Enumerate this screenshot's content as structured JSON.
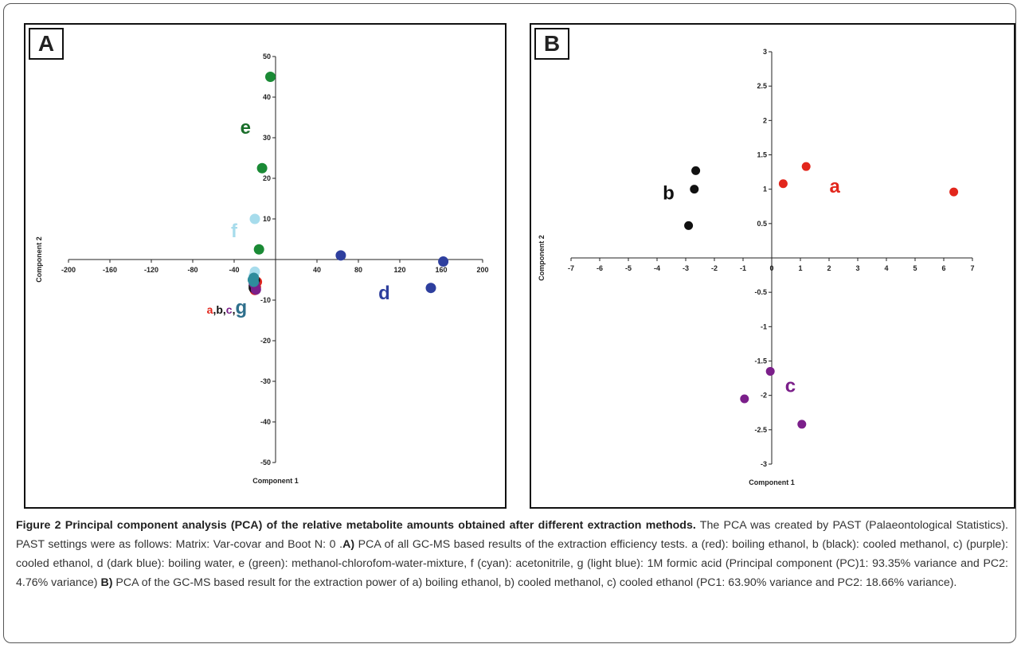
{
  "chart_data": [
    {
      "type": "scatter",
      "panel_label": "A",
      "xlabel": "Component 1",
      "ylabel": "Component 2",
      "xlim": [
        -200,
        200
      ],
      "ylim": [
        -50,
        50
      ],
      "xticks": [
        -200,
        -160,
        -120,
        -80,
        -40,
        40,
        80,
        120,
        160,
        200
      ],
      "yticks": [
        50,
        40,
        30,
        20,
        10,
        -10,
        -20,
        -30,
        -40,
        -50
      ],
      "grid": false,
      "series": [
        {
          "color": "#e2261c",
          "points": [
            [
              -18,
              -5.5
            ],
            [
              -20,
              -7.5
            ],
            [
              -19,
              -6.8
            ]
          ]
        },
        {
          "color": "#111111",
          "points": [
            [
              -21,
              -6.5
            ],
            [
              -20,
              -5.2
            ],
            [
              -21,
              -7.0
            ]
          ]
        },
        {
          "color": "#7b1f8a",
          "points": [
            [
              -20,
              -6.2
            ],
            [
              -19,
              -7.4
            ],
            [
              -21,
              -5.8
            ]
          ]
        },
        {
          "color": "#2e3f9e",
          "points": [
            [
              63,
              1
            ],
            [
              162,
              -0.5
            ],
            [
              150,
              -7
            ]
          ]
        },
        {
          "color": "#1a8a35",
          "points": [
            [
              -5,
              45
            ],
            [
              -13,
              22.5
            ],
            [
              -16,
              2.5
            ]
          ]
        },
        {
          "color": "#a7dcec",
          "points": [
            [
              -20,
              10
            ],
            [
              -20,
              -3
            ],
            [
              -21,
              -4
            ]
          ]
        },
        {
          "color": "#2e8c9c",
          "points": [
            [
              -21,
              -4.5
            ],
            [
              -22,
              -5.0
            ],
            [
              -21,
              -5.5
            ]
          ]
        }
      ],
      "group_labels": [
        {
          "text": "e",
          "x": -29,
          "y": 31,
          "color": "#1a6e2a"
        },
        {
          "text": "f",
          "x": -40,
          "y": 5.5,
          "color": "#a7dcec"
        },
        {
          "text": "d",
          "x": 105,
          "y": -9.8,
          "color": "#2e3f9e"
        }
      ],
      "combo_label": [
        {
          "text": "a",
          "color": "#e2261c"
        },
        {
          "text": ",",
          "color": "#111111"
        },
        {
          "text": "b",
          "color": "#111111"
        },
        {
          "text": ",",
          "color": "#111111"
        },
        {
          "text": "c",
          "color": "#7b1f8a"
        },
        {
          "text": ",",
          "color": "#111111"
        },
        {
          "text": "g",
          "color": "#2e6f8c"
        }
      ]
    },
    {
      "type": "scatter",
      "panel_label": "B",
      "xlabel": "Component 1",
      "ylabel": "Component 2",
      "xlim": [
        -7,
        7
      ],
      "ylim": [
        -3,
        3
      ],
      "xticks": [
        -7,
        -6,
        -5,
        -4,
        -3,
        -2,
        -1,
        0,
        1,
        2,
        3,
        4,
        5,
        6,
        7
      ],
      "yticks": [
        3,
        2.5,
        2,
        1.5,
        1,
        0.5,
        -0.5,
        -1,
        -1.5,
        -2,
        -2.5,
        -3
      ],
      "grid": false,
      "series": [
        {
          "color": "#e2261c",
          "points": [
            [
              0.4,
              1.08
            ],
            [
              1.2,
              1.33
            ],
            [
              6.35,
              0.96
            ]
          ]
        },
        {
          "color": "#111111",
          "points": [
            [
              -2.65,
              1.27
            ],
            [
              -2.7,
              1.0
            ],
            [
              -2.9,
              0.47
            ]
          ]
        },
        {
          "color": "#7b1f8a",
          "points": [
            [
              -0.05,
              -1.65
            ],
            [
              -0.95,
              -2.05
            ],
            [
              1.05,
              -2.42
            ]
          ]
        }
      ],
      "group_labels": [
        {
          "text": "a",
          "x": 2.2,
          "y": 0.95,
          "color": "#e2261c"
        },
        {
          "text": "b",
          "x": -3.6,
          "y": 0.85,
          "color": "#111111"
        },
        {
          "text": "c",
          "x": 0.65,
          "y": -1.95,
          "color": "#7b1f8a"
        }
      ]
    }
  ],
  "caption": {
    "title": "Figure 2 Principal component analysis (PCA) of the relative metabolite amounts obtained after different extraction methods.",
    "text1": " The PCA was created by PAST (Palaeontological Statistics). PAST settings were as follows: Matrix: Var-covar and Boot N: 0 .",
    "bold_a": "A)",
    "text2": " PCA of all GC-MS based results of the extraction efficiency tests. a (red): boiling ethanol, b (black): cooled methanol, c) (purple): cooled ethanol, d (dark blue): boiling water, e (green): methanol-chlorofom-water-mixture, f (cyan): acetonitrile, g (light blue): 1M formic acid (Principal component (PC)1: 93.35% variance and PC2: 4.76% variance) ",
    "bold_b": "B)",
    "text3": " PCA of the GC-MS based result for the extraction power of a) boiling ethanol, b) cooled methanol, c) cooled ethanol (PC1: 63.90% variance and PC2: 18.66% variance)."
  }
}
